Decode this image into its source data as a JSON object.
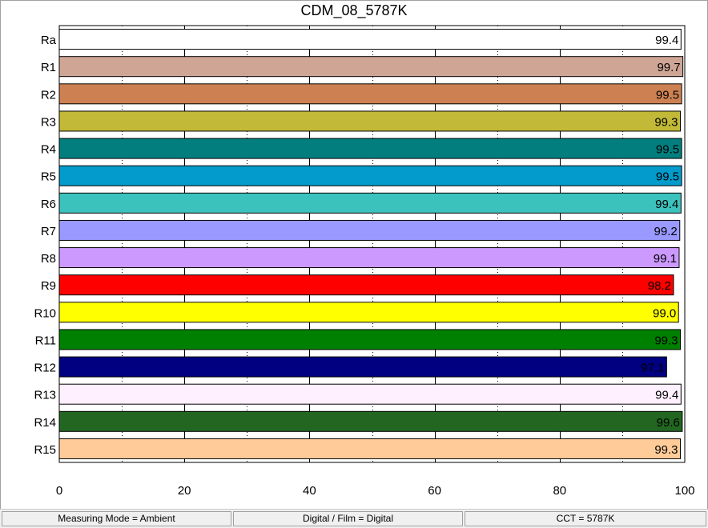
{
  "chart_data": {
    "type": "bar",
    "orientation": "horizontal",
    "title": "CDM_08_5787K",
    "xlabel": "",
    "ylabel": "",
    "xlim": [
      0,
      100
    ],
    "x_ticks": [
      "0",
      "20",
      "40",
      "60",
      "80",
      "100"
    ],
    "categories": [
      "Ra",
      "R1",
      "R2",
      "R3",
      "R4",
      "R5",
      "R6",
      "R7",
      "R8",
      "R9",
      "R10",
      "R11",
      "R12",
      "R13",
      "R14",
      "R15"
    ],
    "values": [
      99.4,
      99.7,
      99.5,
      99.3,
      99.5,
      99.5,
      99.4,
      99.2,
      99.1,
      98.2,
      99.0,
      99.3,
      97.1,
      99.4,
      99.6,
      99.3
    ],
    "value_labels": [
      "99.4",
      "99.7",
      "99.5",
      "99.3",
      "99.5",
      "99.5",
      "99.4",
      "99.2",
      "99.1",
      "98.2",
      "99.0",
      "99.3",
      "97.1",
      "99.4",
      "99.6",
      "99.3"
    ],
    "colors": [
      "#ffffff",
      "#cfa696",
      "#cd8152",
      "#c1b937",
      "#037e7e",
      "#029bcb",
      "#3cc2bc",
      "#9999ff",
      "#cc99ff",
      "#ff0000",
      "#ffff00",
      "#008000",
      "#000080",
      "#fff0ff",
      "#226622",
      "#ffcc99"
    ],
    "grid": true
  },
  "status_bar": {
    "measuring_mode": "Measuring Mode = Ambient",
    "digital_film": "Digital / Film = Digital",
    "cct": "CCT = 5787K"
  }
}
